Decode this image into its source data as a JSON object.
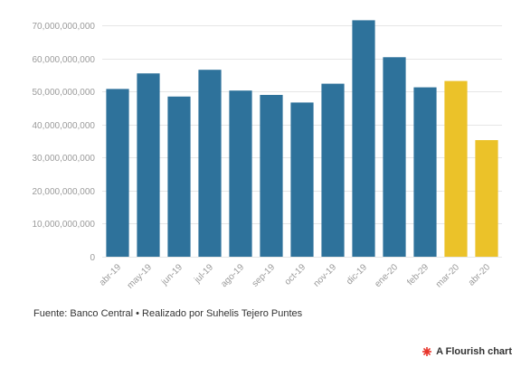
{
  "chart_data": {
    "type": "bar",
    "categories": [
      "abr-19",
      "may-19",
      "jun-19",
      "jul-19",
      "ago-19",
      "sep-19",
      "oct-19",
      "nov-19",
      "dic-19",
      "ene-20",
      "feb-29",
      "mar-20",
      "abr-20"
    ],
    "values": [
      50800000000,
      55500000000,
      48500000000,
      56600000000,
      50300000000,
      49000000000,
      46700000000,
      52400000000,
      71600000000,
      60400000000,
      51300000000,
      53200000000,
      35300000000
    ],
    "colors": [
      "#2e729b",
      "#2e729b",
      "#2e729b",
      "#2e729b",
      "#2e729b",
      "#2e729b",
      "#2e729b",
      "#2e729b",
      "#2e729b",
      "#2e729b",
      "#2e729b",
      "#ebc229",
      "#ebc229"
    ],
    "ylim": [
      0,
      75000000000
    ],
    "yticks": [
      0,
      10000000000,
      20000000000,
      30000000000,
      40000000000,
      50000000000,
      60000000000,
      70000000000
    ],
    "ytick_labels": [
      "0",
      "10,000,000,000",
      "20,000,000,000",
      "30,000,000,000",
      "40,000,000,000",
      "50,000,000,000",
      "60,000,000,000",
      "70,000,000,000"
    ],
    "grid": true,
    "title": "",
    "xlabel": "",
    "ylabel": ""
  },
  "footer": {
    "source": "Fuente: Banco Central • Realizado por Suhelis Tejero Puntes",
    "flourish_label": "A Flourish chart",
    "flourish_icon": "flourish-logo-icon",
    "flourish_color": "#e8352b"
  }
}
